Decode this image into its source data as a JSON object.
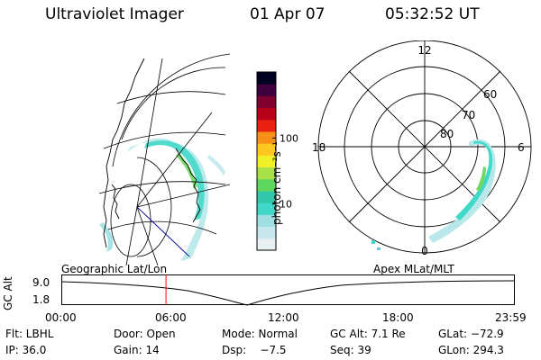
{
  "header": {
    "title": "Ultraviolet Imager",
    "date": "01 Apr 07",
    "time": "05:32:52 UT"
  },
  "colorbar": {
    "unit_label": "photon cm⁻²s⁻¹",
    "ticks": [
      {
        "label": "100",
        "value": 100
      },
      {
        "label": "10",
        "value": 10
      }
    ],
    "colors": [
      "#e8f0f4",
      "#c8e8ee",
      "#a0e0e4",
      "#40d8c8",
      "#30c8a8",
      "#60d860",
      "#a8e048",
      "#f0f028",
      "#ffc820",
      "#f89018",
      "#e82010",
      "#b80018",
      "#800030",
      "#400040",
      "#000020"
    ]
  },
  "polar_plot": {
    "mlt_labels": {
      "top": "12",
      "left": "18",
      "right": "6",
      "bottom": "0"
    },
    "lat_labels": [
      {
        "label": "60"
      },
      {
        "label": "70"
      },
      {
        "label": "80"
      }
    ]
  },
  "timeline": {
    "left_label": "Geographic Lat/Lon",
    "right_label": "Apex MLat/MLT",
    "y_axis_label": "GC Alt",
    "y_ticks": [
      "9.0",
      "1.8"
    ],
    "x_ticks": [
      "00:00",
      "06:00",
      "12:00",
      "18:00",
      "23:59"
    ],
    "current_time_hours": 5.55,
    "marker_color": "#ff0000"
  },
  "info": {
    "row1": {
      "filter": "Flt: LBHL",
      "door": "Door: Open",
      "mode": "Mode: Normal",
      "gc_alt": "GC Alt: 7.1 Re",
      "glat": "GLat: −72.9"
    },
    "row2": {
      "ip": "IP: 36.0",
      "gain": "Gain: 14",
      "dsp": "Dsp:    −7.5",
      "seq": "Seq: 39",
      "glon": "GLon: 294.3"
    }
  }
}
